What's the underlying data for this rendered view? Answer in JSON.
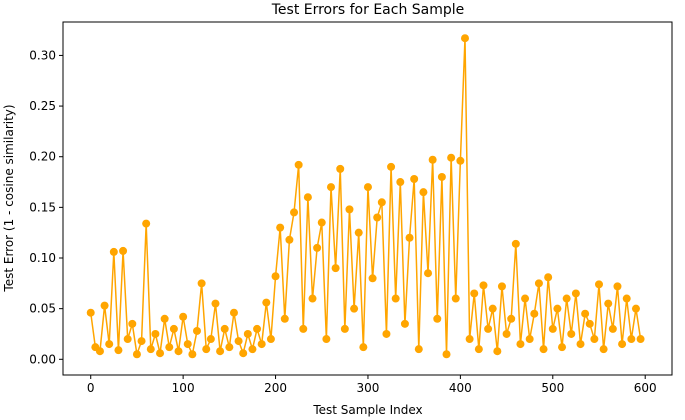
{
  "chart_data": {
    "type": "line",
    "title": "Test Errors for Each Sample",
    "x_label": "Test Sample Index",
    "y_label": "Test Error (1 - cosine similarity)",
    "color": "#ffa500",
    "xlim": [
      -30,
      629
    ],
    "ylim": [
      -0.0155,
      0.333
    ],
    "xticks": [
      0,
      100,
      200,
      300,
      400,
      500,
      600
    ],
    "yticks": [
      {
        "value": 0,
        "label": "0.00"
      },
      {
        "value": 0.05,
        "label": "0.05"
      },
      {
        "value": 0.1,
        "label": "0.10"
      },
      {
        "value": 0.15,
        "label": "0.15"
      },
      {
        "value": 0.2,
        "label": "0.20"
      },
      {
        "value": 0.25,
        "label": "0.25"
      },
      {
        "value": 0.3,
        "label": "0.30"
      }
    ],
    "x": [
      0,
      5,
      10,
      15,
      20,
      25,
      30,
      35,
      40,
      45,
      50,
      55,
      60,
      65,
      70,
      75,
      80,
      85,
      90,
      95,
      100,
      105,
      110,
      115,
      120,
      125,
      130,
      135,
      140,
      145,
      150,
      155,
      160,
      165,
      170,
      175,
      180,
      185,
      190,
      195,
      200,
      205,
      210,
      215,
      220,
      225,
      230,
      235,
      240,
      245,
      250,
      255,
      260,
      265,
      270,
      275,
      280,
      285,
      290,
      295,
      300,
      305,
      310,
      315,
      320,
      325,
      330,
      335,
      340,
      345,
      350,
      355,
      360,
      365,
      370,
      375,
      380,
      385,
      390,
      395,
      400,
      405,
      410,
      415,
      420,
      425,
      430,
      435,
      440,
      445,
      450,
      455,
      460,
      465,
      470,
      475,
      480,
      485,
      490,
      495,
      500,
      505,
      510,
      515,
      520,
      525,
      530,
      535,
      540,
      545,
      550,
      555,
      560,
      565,
      570,
      575,
      580,
      585,
      590,
      595
    ],
    "values": [
      0.046,
      0.012,
      0.008,
      0.053,
      0.015,
      0.106,
      0.009,
      0.107,
      0.02,
      0.035,
      0.005,
      0.018,
      0.134,
      0.01,
      0.025,
      0.006,
      0.04,
      0.012,
      0.03,
      0.008,
      0.042,
      0.015,
      0.005,
      0.028,
      0.075,
      0.01,
      0.02,
      0.055,
      0.008,
      0.03,
      0.012,
      0.046,
      0.018,
      0.006,
      0.025,
      0.01,
      0.03,
      0.015,
      0.056,
      0.02,
      0.082,
      0.13,
      0.04,
      0.118,
      0.145,
      0.192,
      0.03,
      0.16,
      0.06,
      0.11,
      0.135,
      0.02,
      0.17,
      0.09,
      0.188,
      0.03,
      0.148,
      0.05,
      0.125,
      0.012,
      0.17,
      0.08,
      0.14,
      0.155,
      0.025,
      0.19,
      0.06,
      0.175,
      0.035,
      0.12,
      0.178,
      0.01,
      0.165,
      0.085,
      0.197,
      0.04,
      0.18,
      0.005,
      0.199,
      0.06,
      0.196,
      0.317,
      0.02,
      0.065,
      0.01,
      0.073,
      0.03,
      0.05,
      0.008,
      0.072,
      0.025,
      0.04,
      0.114,
      0.015,
      0.06,
      0.02,
      0.045,
      0.075,
      0.01,
      0.081,
      0.03,
      0.05,
      0.012,
      0.06,
      0.025,
      0.065,
      0.015,
      0.045,
      0.035,
      0.02,
      0.074,
      0.01,
      0.055,
      0.03,
      0.072,
      0.015,
      0.06,
      0.02,
      0.05,
      0.02
    ]
  }
}
